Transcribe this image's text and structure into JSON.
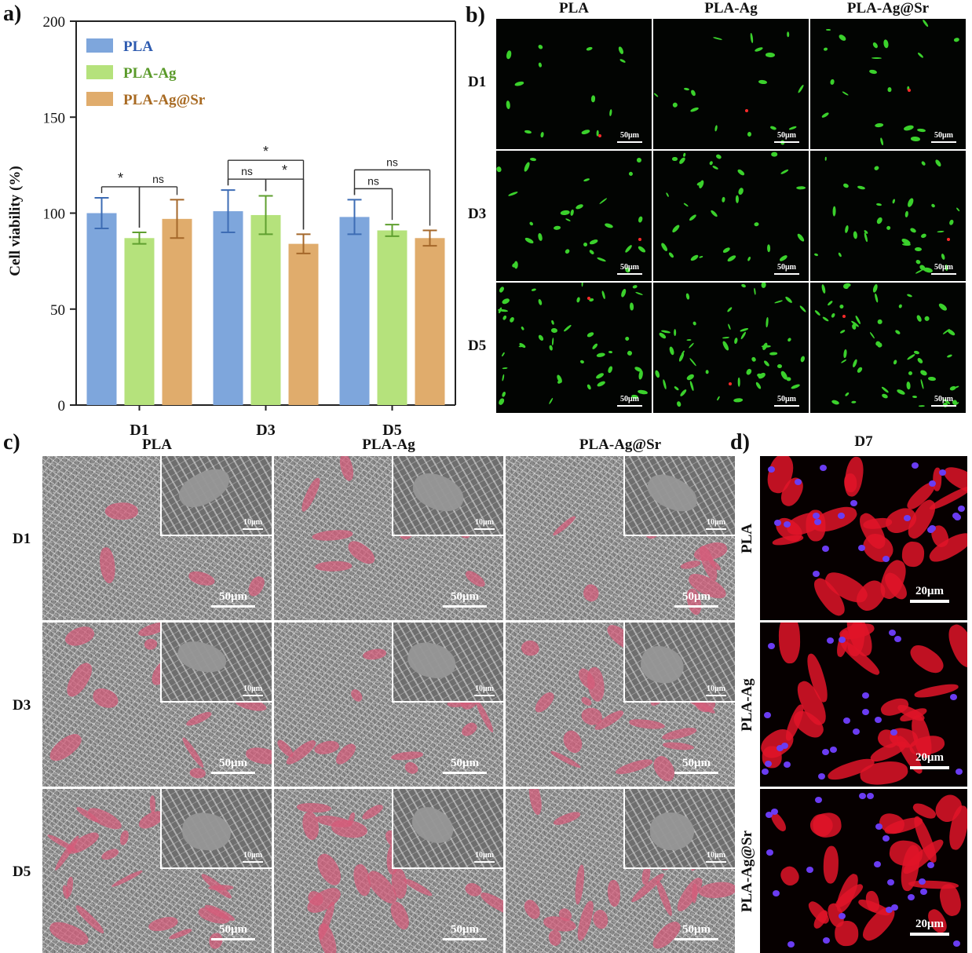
{
  "panel_labels": {
    "a": "a)",
    "b": "b)",
    "c": "c)",
    "d": "d)"
  },
  "colors": {
    "PLA": "#7ea6dc",
    "PLA-Ag": "#b5e27c",
    "PLA-Ag@Sr": "#e0ac6c",
    "PLA_text": "#2e5bb0",
    "PLA-Ag_text": "#5a9a2a",
    "PLA-Ag@Sr_text": "#a86a22"
  },
  "chart_data": {
    "type": "bar",
    "title": "",
    "ylabel": "Cell viability (%)",
    "xlabel": "",
    "ylim": [
      0,
      200
    ],
    "yticks": [
      0,
      50,
      100,
      150,
      200
    ],
    "categories": [
      "D1",
      "D3",
      "D5"
    ],
    "series": [
      {
        "name": "PLA",
        "values": [
          100,
          101,
          98
        ],
        "errors": [
          8,
          11,
          9
        ]
      },
      {
        "name": "PLA-Ag",
        "values": [
          87,
          99,
          91
        ],
        "errors": [
          3,
          10,
          3
        ]
      },
      {
        "name": "PLA-Ag@Sr",
        "values": [
          97,
          84,
          87
        ],
        "errors": [
          10,
          5,
          4
        ]
      }
    ],
    "legend_position": "top-left",
    "significance": [
      {
        "group": "D1",
        "from": 0,
        "to": 1,
        "label": "*",
        "level": 0
      },
      {
        "group": "D1",
        "from": 1,
        "to": 2,
        "label": "ns",
        "level": 0
      },
      {
        "group": "D3",
        "from": 0,
        "to": 1,
        "label": "ns",
        "level": 0
      },
      {
        "group": "D3",
        "from": 1,
        "to": 2,
        "label": "*",
        "level": 0
      },
      {
        "group": "D3",
        "from": 0,
        "to": 2,
        "label": "*",
        "level": 1
      },
      {
        "group": "D5",
        "from": 0,
        "to": 1,
        "label": "ns",
        "level": 0
      },
      {
        "group": "D5",
        "from": 0,
        "to": 2,
        "label": "ns",
        "level": 1
      }
    ]
  },
  "panel_b": {
    "columns": [
      "PLA",
      "PLA-Ag",
      "PLA-Ag@Sr"
    ],
    "rows": [
      "D1",
      "D3",
      "D5"
    ],
    "scale": "50μm"
  },
  "panel_c": {
    "columns": [
      "PLA",
      "PLA-Ag",
      "PLA-Ag@Sr"
    ],
    "rows": [
      "D1",
      "D3",
      "D5"
    ],
    "scale_main": "50μm",
    "scale_inset": "10μm"
  },
  "panel_d": {
    "title": "D7",
    "rows": [
      "PLA",
      "PLA-Ag",
      "PLA-Ag@Sr"
    ],
    "scale": "20μm"
  }
}
